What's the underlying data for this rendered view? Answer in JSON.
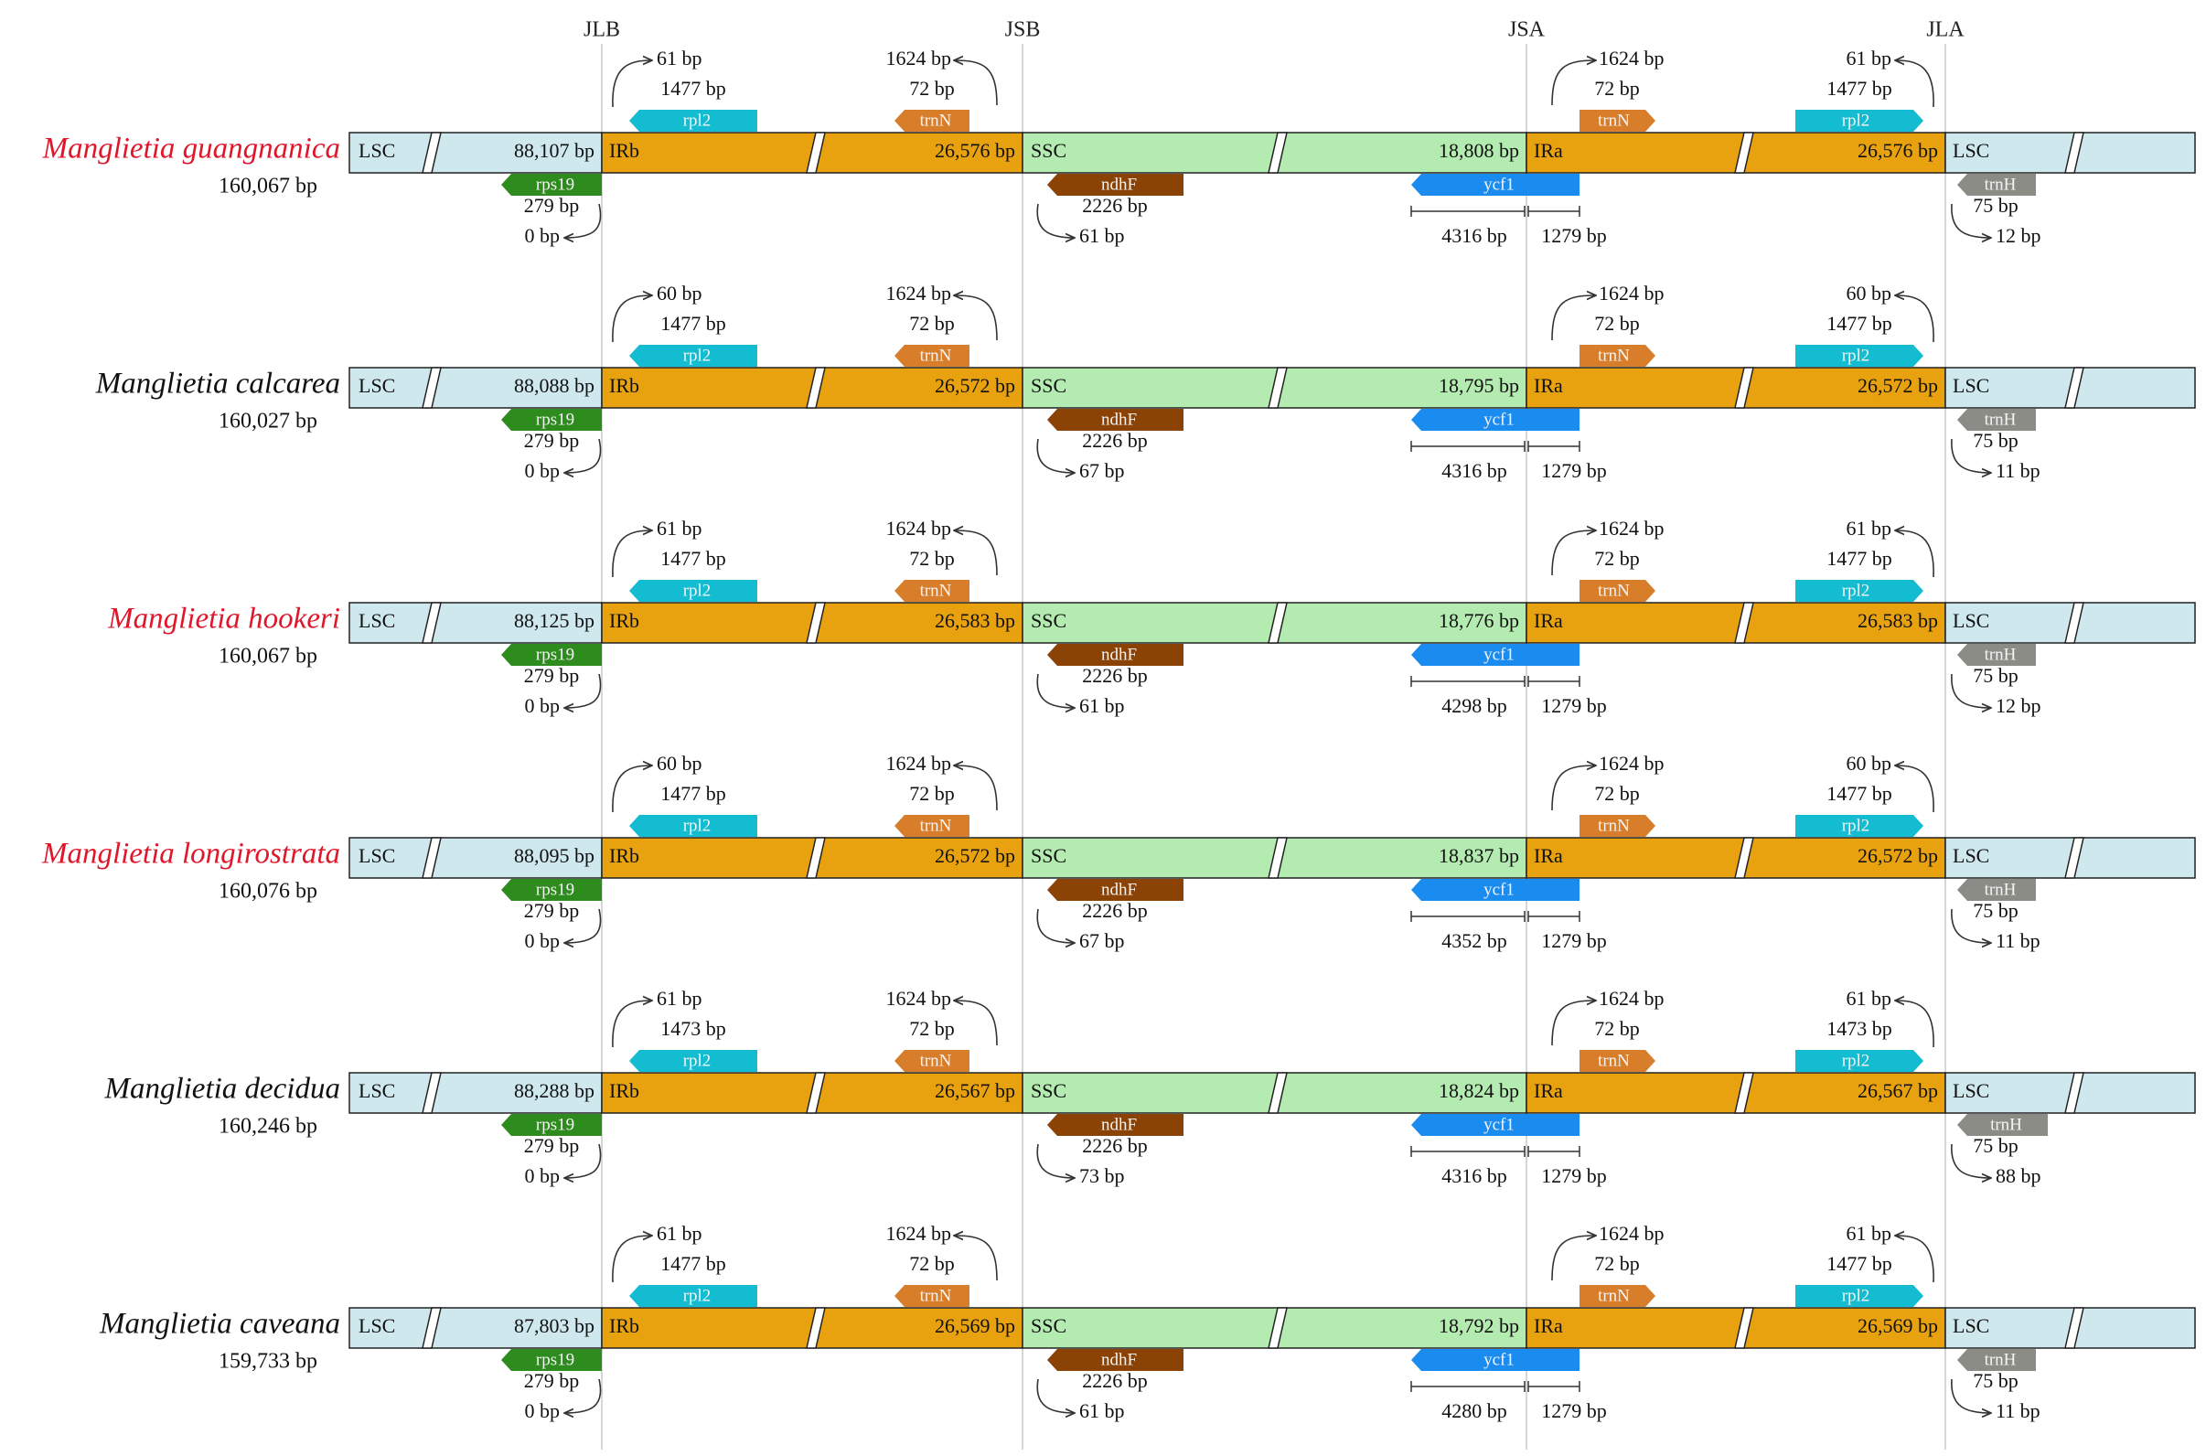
{
  "junctions": [
    "JLB",
    "JSB",
    "JSA",
    "JLA"
  ],
  "region_labels": {
    "lsc": "LSC",
    "irb": "IRb",
    "ssc": "SSC",
    "ira": "IRa",
    "lsc_end": "LSC"
  },
  "gene_names": {
    "rpl2": "rpl2",
    "trnN": "trnN",
    "rps19": "rps19",
    "ndhF": "ndhF",
    "ycf1": "ycf1",
    "trnH": "trnH"
  },
  "fixed_labels": {
    "rps19_in": "279 bp",
    "trnN_in": "72 bp",
    "trnN_to_JSB": "1624 bp",
    "ndhF_in": "2226 bp",
    "ycf1_ira": "1279 bp",
    "trnN_from_JSA": "1624 bp",
    "trnH_in": "75 bp"
  },
  "colors": {
    "lsc": "#cfe8ee",
    "ir": "#e8a20f",
    "ssc": "#b3ebb0",
    "rpl2": "#13bcd0",
    "trnN": "#d87d2a",
    "rps19": "#2e8b1e",
    "ndhF": "#8a4205",
    "ycf1": "#1a8cf0",
    "trnH": "#8c8c86",
    "highlight_name": "#e0162b"
  },
  "species": [
    {
      "name": "Manglietia guangnanica",
      "highlight": true,
      "total": "160,067 bp",
      "lsc": "88,107 bp",
      "irb": "26,576 bp",
      "ssc": "18,808 bp",
      "ira": "26,576 bp",
      "rpl2_b_gap": "61 bp",
      "rpl2_b_len": "1477 bp",
      "rps19_gap": "0 bp",
      "ndhF_gap": "61 bp",
      "ycf1_ssc": "4316 bp",
      "rpl2_a_gap": "61 bp",
      "rpl2_a_len": "1477 bp",
      "trnH_gap": "12 bp"
    },
    {
      "name": "Manglietia calcarea",
      "highlight": false,
      "total": "160,027 bp",
      "lsc": "88,088 bp",
      "irb": "26,572 bp",
      "ssc": "18,795 bp",
      "ira": "26,572 bp",
      "rpl2_b_gap": "60 bp",
      "rpl2_b_len": "1477 bp",
      "rps19_gap": "0 bp",
      "ndhF_gap": "67 bp",
      "ycf1_ssc": "4316 bp",
      "rpl2_a_gap": "60 bp",
      "rpl2_a_len": "1477 bp",
      "trnH_gap": "11 bp"
    },
    {
      "name": "Manglietia hookeri",
      "highlight": true,
      "total": "160,067 bp",
      "lsc": "88,125 bp",
      "irb": "26,583 bp",
      "ssc": "18,776 bp",
      "ira": "26,583 bp",
      "rpl2_b_gap": "61 bp",
      "rpl2_b_len": "1477 bp",
      "rps19_gap": "0 bp",
      "ndhF_gap": "61 bp",
      "ycf1_ssc": "4298 bp",
      "rpl2_a_gap": "61 bp",
      "rpl2_a_len": "1477 bp",
      "trnH_gap": "12 bp"
    },
    {
      "name": "Manglietia longirostrata",
      "highlight": true,
      "total": "160,076 bp",
      "lsc": "88,095 bp",
      "irb": "26,572 bp",
      "ssc": "18,837 bp",
      "ira": "26,572 bp",
      "rpl2_b_gap": "60 bp",
      "rpl2_b_len": "1477 bp",
      "rps19_gap": "0 bp",
      "ndhF_gap": "67 bp",
      "ycf1_ssc": "4352 bp",
      "rpl2_a_gap": "60 bp",
      "rpl2_a_len": "1477 bp",
      "trnH_gap": "11 bp"
    },
    {
      "name": "Manglietia decidua",
      "highlight": false,
      "total": "160,246 bp",
      "lsc": "88,288 bp",
      "irb": "26,567 bp",
      "ssc": "18,824 bp",
      "ira": "26,567 bp",
      "rpl2_b_gap": "61 bp",
      "rpl2_b_len": "1473 bp",
      "rps19_gap": "0 bp",
      "ndhF_gap": "73 bp",
      "ycf1_ssc": "4316 bp",
      "rpl2_a_gap": "61 bp",
      "rpl2_a_len": "1473 bp",
      "trnH_gap": "88 bp"
    },
    {
      "name": "Manglietia caveana",
      "highlight": false,
      "total": "159,733 bp",
      "lsc": "87,803 bp",
      "irb": "26,569 bp",
      "ssc": "18,792 bp",
      "ira": "26,569 bp",
      "rpl2_b_gap": "61 bp",
      "rpl2_b_len": "1477 bp",
      "rps19_gap": "0 bp",
      "ndhF_gap": "61 bp",
      "ycf1_ssc": "4280 bp",
      "rpl2_a_gap": "61 bp",
      "rpl2_a_len": "1477 bp",
      "trnH_gap": "11 bp"
    }
  ]
}
